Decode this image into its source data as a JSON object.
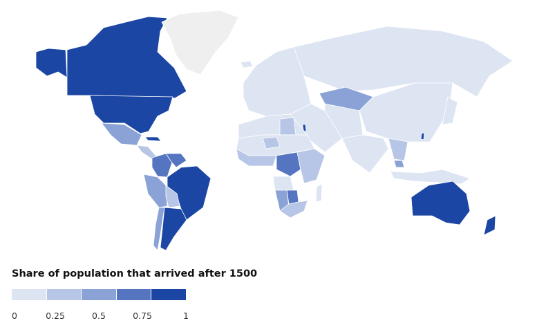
{
  "legend": {
    "title": "Share of population that arrived after 1500",
    "ticks": [
      "0",
      "0.25",
      "0.5",
      "0.75",
      "1"
    ],
    "colors": [
      "#dde4f2",
      "#b7c6e6",
      "#8aa2d6",
      "#5575c0",
      "#1b46a4"
    ]
  },
  "map_style": {
    "no_data_color": "#efefef",
    "border_color": "#ffffff",
    "background": "#ffffff"
  },
  "regions": [
    {
      "name": "Alaska / United States",
      "value": 0.95
    },
    {
      "name": "Canada",
      "value": 0.95
    },
    {
      "name": "United States",
      "value": 0.95
    },
    {
      "name": "Greenland",
      "value": null
    },
    {
      "name": "Mexico",
      "value": 0.4
    },
    {
      "name": "Central America",
      "value": 0.35
    },
    {
      "name": "Cuba",
      "value": 0.9
    },
    {
      "name": "Colombia",
      "value": 0.75
    },
    {
      "name": "Venezuela",
      "value": 0.75
    },
    {
      "name": "Peru",
      "value": 0.4
    },
    {
      "name": "Brazil",
      "value": 0.85
    },
    {
      "name": "Bolivia",
      "value": 0.3
    },
    {
      "name": "Argentina",
      "value": 0.95
    },
    {
      "name": "Chile",
      "value": 0.55
    },
    {
      "name": "Iceland",
      "value": 0.05
    },
    {
      "name": "Europe",
      "value": 0.1
    },
    {
      "name": "Russia",
      "value": 0.05
    },
    {
      "name": "Kazakhstan",
      "value": 0.55
    },
    {
      "name": "Middle East",
      "value": 0.15
    },
    {
      "name": "Israel",
      "value": 0.85
    },
    {
      "name": "Central Asia",
      "value": 0.15
    },
    {
      "name": "China and Mongolia",
      "value": 0.05
    },
    {
      "name": "Taiwan",
      "value": 0.95
    },
    {
      "name": "South Asia",
      "value": 0.05
    },
    {
      "name": "Southeast Asia",
      "value": 0.2
    },
    {
      "name": "Malaysia",
      "value": 0.4
    },
    {
      "name": "Indonesia",
      "value": 0.05
    },
    {
      "name": "Japan",
      "value": 0.05
    },
    {
      "name": "North Africa",
      "value": 0.05
    },
    {
      "name": "Libya",
      "value": 0.2
    },
    {
      "name": "Sahel",
      "value": 0.05
    },
    {
      "name": "Niger",
      "value": 0.35
    },
    {
      "name": "West Africa",
      "value": 0.2
    },
    {
      "name": "Central Africa",
      "value": 0.7
    },
    {
      "name": "East Africa",
      "value": 0.3
    },
    {
      "name": "Angola",
      "value": 0.15
    },
    {
      "name": "Namibia",
      "value": 0.5
    },
    {
      "name": "Botswana",
      "value": 0.6
    },
    {
      "name": "South Africa",
      "value": 0.2
    },
    {
      "name": "Madagascar",
      "value": 0.05
    },
    {
      "name": "Australia",
      "value": 0.97
    },
    {
      "name": "New Zealand",
      "value": 0.95
    }
  ]
}
